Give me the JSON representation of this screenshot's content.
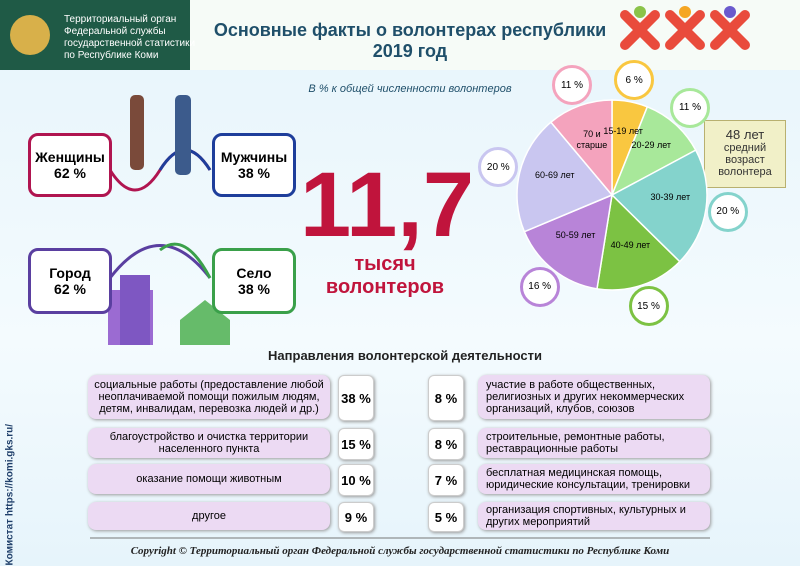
{
  "header": {
    "org": [
      "Территориальный орган",
      "Федеральной службы",
      "государственной статистики",
      "по Республике Коми"
    ],
    "title": "Основные факты о волонтерах республики",
    "year": "2019 год"
  },
  "subtitle": "В % к общей численности волонтеров",
  "gender": [
    {
      "label": "Женщины",
      "value": "62 %"
    },
    {
      "label": "Мужчины",
      "value": "38 %"
    }
  ],
  "settlement": [
    {
      "label": "Город",
      "value": "62 %"
    },
    {
      "label": "Село",
      "value": "38 %"
    }
  ],
  "total": {
    "value": "11,7",
    "unit": "тысяч",
    "noun": "волонтеров"
  },
  "avg_age": {
    "value": "48 лет",
    "text": "средний возраст волонтера"
  },
  "chart_data": {
    "type": "pie",
    "categories": [
      "15-19 лет",
      "20-29 лет",
      "30-39 лет",
      "40-49 лет",
      "50-59 лет",
      "60-69 лет",
      "70 и старше"
    ],
    "values": [
      6,
      11,
      20,
      15,
      16,
      20,
      11
    ],
    "value_labels": [
      "6 %",
      "11 %",
      "20 %",
      "15 %",
      "16 %",
      "20 %",
      "11 %"
    ],
    "colors": [
      "#f9c740",
      "#a8e89a",
      "#84d3cc",
      "#7cc243",
      "#b884d8",
      "#c9c6f0",
      "#f4a3bd"
    ]
  },
  "directions": {
    "title": "Направления волонтерской деятельности",
    "rows": [
      {
        "left_text": "социальные работы (предоставление любой неоплачиваемой помощи пожилым людям, детям, инвалидам, перевозка людей и др.)",
        "left_pct": "38 %",
        "right_pct": "8 %",
        "right_text": "участие в работе общественных, религиозных и других некоммерческих организаций, клубов, союзов"
      },
      {
        "left_text": "благоустройство и очистка территории населенного пункта",
        "left_pct": "15 %",
        "right_pct": "8 %",
        "right_text": "строительные, ремонтные работы, реставрационные работы"
      },
      {
        "left_text": "оказание помощи животным",
        "left_pct": "10 %",
        "right_pct": "7 %",
        "right_text": "бесплатная медицинская помощь, юридические консультации, тренировки"
      },
      {
        "left_text": "другое",
        "left_pct": "9 %",
        "right_pct": "5 %",
        "right_text": "организация спортивных, культурных и других мероприятий"
      }
    ]
  },
  "side": {
    "name": "Комистат",
    "url": "https://komi.gks.ru/"
  },
  "footer": "Copyright © Территориальный орган Федеральной службы государственной статистики по Республике Коми"
}
